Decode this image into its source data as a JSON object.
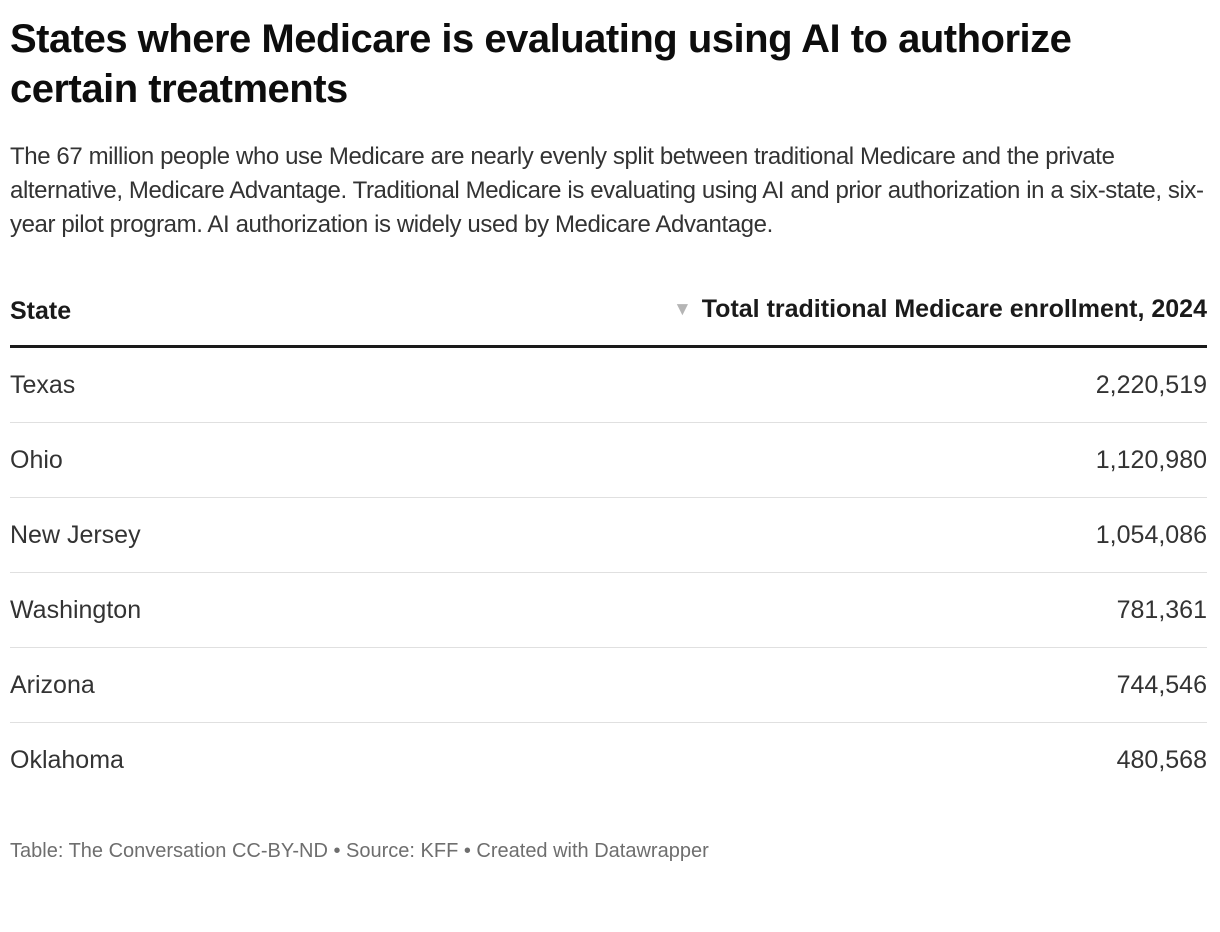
{
  "header": {
    "title": "States where Medicare is evaluating using AI to authorize certain treatments",
    "description": "The 67 million people who use Medicare are nearly evenly split between traditional Medicare and the private alternative, Medicare Advantage. Traditional Medicare is evaluating using AI and prior authorization in a six-state, six-year pilot program. AI authorization is widely used by Medicare Advantage."
  },
  "table": {
    "columns": [
      {
        "label": "State",
        "align": "left"
      },
      {
        "label": "Total traditional Medicare enrollment, 2024",
        "align": "right",
        "sorted": "descending",
        "sort_icon": "▼"
      }
    ],
    "rows": [
      {
        "state": "Texas",
        "enrollment": "2,220,519"
      },
      {
        "state": "Ohio",
        "enrollment": "1,120,980"
      },
      {
        "state": "New Jersey",
        "enrollment": "1,054,086"
      },
      {
        "state": "Washington",
        "enrollment": "781,361"
      },
      {
        "state": "Arizona",
        "enrollment": "744,546"
      },
      {
        "state": "Oklahoma",
        "enrollment": "480,568"
      }
    ]
  },
  "footer": {
    "text": "Table: The Conversation CC-BY-ND • Source: KFF • Created with Datawrapper"
  },
  "colors": {
    "title_text": "#0d0d0d",
    "body_text": "#333333",
    "header_text": "#1a1a1a",
    "header_border": "#1a1a1a",
    "row_divider": "#e0e0e0",
    "sort_arrow": "#b5b5b5",
    "footer_text": "#6e6e6e"
  },
  "chart_data": {
    "type": "table",
    "title": "States where Medicare is evaluating using AI to authorize certain treatments",
    "columns": [
      "State",
      "Total traditional Medicare enrollment, 2024"
    ],
    "rows": [
      [
        "Texas",
        2220519
      ],
      [
        "Ohio",
        1120980
      ],
      [
        "New Jersey",
        1054086
      ],
      [
        "Washington",
        781361
      ],
      [
        "Arizona",
        744546
      ],
      [
        "Oklahoma",
        480568
      ]
    ],
    "sort": {
      "column": "Total traditional Medicare enrollment, 2024",
      "direction": "desc"
    },
    "source": "KFF",
    "credit": "The Conversation CC-BY-ND",
    "tool": "Datawrapper"
  }
}
